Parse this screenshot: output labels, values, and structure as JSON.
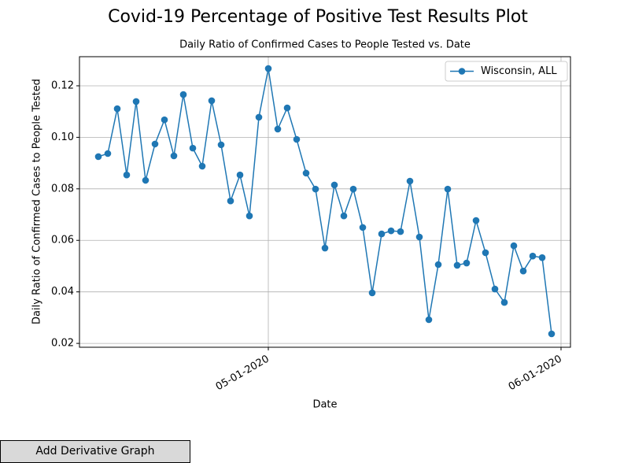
{
  "chart_data": {
    "type": "line",
    "title": "Covid-19 Percentage of Positive Test Results Plot",
    "subtitle": "Daily Ratio of Confirmed Cases to People Tested vs. Date",
    "x_label": "Date",
    "y_label": "Daily Ratio of Confirmed Cases to People Tested",
    "x": [
      "04-13-2020",
      "04-14-2020",
      "04-15-2020",
      "04-16-2020",
      "04-17-2020",
      "04-18-2020",
      "04-19-2020",
      "04-20-2020",
      "04-21-2020",
      "04-22-2020",
      "04-23-2020",
      "04-24-2020",
      "04-25-2020",
      "04-26-2020",
      "04-27-2020",
      "04-28-2020",
      "04-29-2020",
      "04-30-2020",
      "05-01-2020",
      "05-02-2020",
      "05-03-2020",
      "05-04-2020",
      "05-05-2020",
      "05-06-2020",
      "05-07-2020",
      "05-08-2020",
      "05-09-2020",
      "05-10-2020",
      "05-11-2020",
      "05-12-2020",
      "05-13-2020",
      "05-14-2020",
      "05-15-2020",
      "05-16-2020",
      "05-17-2020",
      "05-18-2020",
      "05-19-2020",
      "05-20-2020",
      "05-21-2020",
      "05-22-2020",
      "05-23-2020",
      "05-24-2020",
      "05-25-2020",
      "05-26-2020",
      "05-27-2020",
      "05-28-2020",
      "05-29-2020",
      "05-30-2020",
      "05-31-2020"
    ],
    "series": [
      {
        "name": "Wisconsin, ALL",
        "color": "#1f77b4",
        "values": [
          0.0925,
          0.0937,
          0.1111,
          0.0854,
          0.1139,
          0.0833,
          0.0974,
          0.1068,
          0.0928,
          0.1166,
          0.0958,
          0.0888,
          0.1142,
          0.0971,
          0.0753,
          0.0854,
          0.0695,
          0.1078,
          0.1267,
          0.1032,
          0.1114,
          0.0992,
          0.0861,
          0.0799,
          0.057,
          0.0815,
          0.0695,
          0.0799,
          0.065,
          0.0396,
          0.0625,
          0.0637,
          0.0634,
          0.083,
          0.0613,
          0.0292,
          0.0506,
          0.0799,
          0.0503,
          0.0512,
          0.0677,
          0.0552,
          0.0411,
          0.0359,
          0.0579,
          0.0481,
          0.0539,
          0.0533,
          0.0237
        ]
      }
    ],
    "xlim": [
      "04-11-2020",
      "06-02-2020"
    ],
    "xticks": [
      "05-01-2020",
      "06-01-2020"
    ],
    "ylim": [
      0.0185,
      0.1313
    ],
    "yticks": [
      0.02,
      0.04,
      0.06,
      0.08,
      {
        "value": 0.1,
        "label": "0.10"
      },
      0.12
    ],
    "grid": true,
    "legend": "upper right"
  },
  "controls": {
    "button": "Add Derivative Graph"
  }
}
